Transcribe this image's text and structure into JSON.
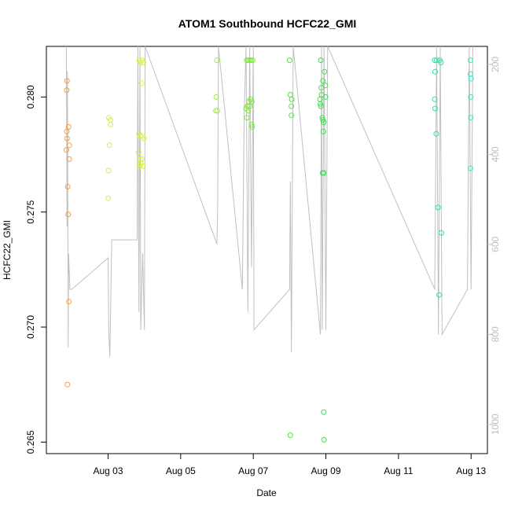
{
  "chart_data": {
    "type": "scatter",
    "title": "ATOM1 Southbound HCFC22_GMI",
    "xlabel": "Date",
    "ylabel": "HCFC22_GMI",
    "x_unit": "days of August (day-of-month, fractional)",
    "xlim": [
      1.3,
      13.45
    ],
    "ylim": [
      0.2645,
      0.2822
    ],
    "y2lim": [
      1065,
      160
    ],
    "x_ticks": [
      {
        "value": 3,
        "label": "Aug 03"
      },
      {
        "value": 5,
        "label": "Aug 05"
      },
      {
        "value": 7,
        "label": "Aug 07"
      },
      {
        "value": 9,
        "label": "Aug 09"
      },
      {
        "value": 11,
        "label": "Aug 11"
      },
      {
        "value": 13,
        "label": "Aug 13"
      }
    ],
    "y_ticks": [
      0.265,
      0.27,
      0.275,
      0.28
    ],
    "y2_ticks": [
      200,
      400,
      600,
      800,
      1000
    ],
    "grid": false,
    "series": [
      {
        "color": "#f4a040",
        "points": [
          [
            1.87,
            0.2807
          ],
          [
            1.86,
            0.2803
          ],
          [
            1.86,
            0.2785
          ],
          [
            1.87,
            0.2782
          ],
          [
            1.91,
            0.2787
          ],
          [
            1.85,
            0.2777
          ],
          [
            1.93,
            0.2779
          ],
          [
            1.93,
            0.2773
          ],
          [
            1.89,
            0.2761
          ],
          [
            1.9,
            0.2749
          ],
          [
            1.92,
            0.2711
          ],
          [
            1.88,
            0.2675
          ]
        ]
      },
      {
        "color": "#d8ea5a",
        "points": [
          [
            3.02,
            0.2791
          ],
          [
            3.06,
            0.279
          ],
          [
            3.07,
            0.2788
          ],
          [
            3.04,
            0.2779
          ],
          [
            3.01,
            0.2768
          ],
          [
            3.0,
            0.2756
          ]
        ]
      },
      {
        "color": "#e0f040",
        "points": [
          [
            3.86,
            0.2816
          ],
          [
            3.9,
            0.2815
          ],
          [
            3.94,
            0.2816
          ],
          [
            3.97,
            0.2815
          ],
          [
            3.92,
            0.2806
          ],
          [
            3.85,
            0.2784
          ],
          [
            3.89,
            0.2783
          ],
          [
            3.95,
            0.2783
          ],
          [
            3.99,
            0.2782
          ],
          [
            3.84,
            0.2776
          ],
          [
            3.88,
            0.2773
          ],
          [
            3.93,
            0.2773
          ],
          [
            3.9,
            0.2771
          ],
          [
            3.96,
            0.277
          ],
          [
            3.87,
            0.277
          ]
        ]
      },
      {
        "color": "#a8e84a",
        "points": [
          [
            6.0,
            0.2816
          ],
          [
            5.98,
            0.28
          ],
          [
            5.97,
            0.2794
          ],
          [
            6.01,
            0.2794
          ]
        ]
      },
      {
        "color": "#80e640",
        "points": [
          [
            6.82,
            0.2816
          ],
          [
            6.86,
            0.2816
          ],
          [
            6.9,
            0.2816
          ],
          [
            6.94,
            0.2816
          ],
          [
            6.98,
            0.2816
          ],
          [
            6.92,
            0.2799
          ],
          [
            6.96,
            0.2798
          ],
          [
            6.88,
            0.2798
          ],
          [
            6.84,
            0.2796
          ],
          [
            6.8,
            0.2795
          ],
          [
            6.86,
            0.2794
          ],
          [
            6.9,
            0.2796
          ],
          [
            6.82,
            0.2791
          ],
          [
            6.95,
            0.2788
          ],
          [
            6.97,
            0.2787
          ]
        ]
      },
      {
        "color": "#58e048",
        "points": [
          [
            8.0,
            0.2816
          ],
          [
            8.02,
            0.2801
          ],
          [
            8.06,
            0.2799
          ],
          [
            8.05,
            0.2796
          ],
          [
            8.05,
            0.2792
          ],
          [
            8.02,
            0.2653
          ]
        ]
      },
      {
        "color": "#40e050",
        "points": [
          [
            8.86,
            0.2816
          ],
          [
            8.96,
            0.2811
          ],
          [
            8.92,
            0.2807
          ],
          [
            8.98,
            0.2805
          ],
          [
            8.87,
            0.2804
          ],
          [
            8.88,
            0.2801
          ],
          [
            8.99,
            0.28
          ],
          [
            8.84,
            0.2799
          ],
          [
            8.85,
            0.2797
          ],
          [
            8.86,
            0.2796
          ],
          [
            8.9,
            0.2791
          ],
          [
            8.92,
            0.279
          ],
          [
            8.94,
            0.2789
          ],
          [
            8.93,
            0.2785
          ],
          [
            8.91,
            0.2767
          ],
          [
            8.94,
            0.2767
          ],
          [
            8.94,
            0.2663
          ],
          [
            8.95,
            0.2651
          ]
        ]
      },
      {
        "color": "#30e0a8",
        "points": [
          [
            12.0,
            0.2816
          ],
          [
            12.05,
            0.2816
          ],
          [
            12.14,
            0.2816
          ],
          [
            12.17,
            0.2815
          ],
          [
            12.01,
            0.2811
          ],
          [
            12.0,
            0.2799
          ],
          [
            12.01,
            0.2795
          ],
          [
            12.04,
            0.2784
          ],
          [
            12.09,
            0.2752
          ],
          [
            12.18,
            0.2741
          ],
          [
            12.12,
            0.2714
          ]
        ]
      },
      {
        "color": "#30e8c8",
        "points": [
          [
            12.98,
            0.2816
          ],
          [
            12.98,
            0.281
          ],
          [
            13.0,
            0.2808
          ],
          [
            12.99,
            0.28
          ],
          [
            12.99,
            0.2791
          ],
          [
            12.98,
            0.2769
          ]
        ]
      }
    ],
    "altitude_trace": {
      "color": "#c0c0c0",
      "axis": "right",
      "points": [
        [
          1.85,
          160
        ],
        [
          1.87,
          560
        ],
        [
          1.88,
          215
        ],
        [
          1.9,
          830
        ],
        [
          1.91,
          620
        ],
        [
          1.95,
          700
        ],
        [
          2.0,
          700
        ],
        [
          3.0,
          630
        ],
        [
          3.02,
          800
        ],
        [
          3.05,
          850
        ],
        [
          3.1,
          590
        ],
        [
          3.8,
          590
        ],
        [
          3.82,
          160
        ],
        [
          3.85,
          750
        ],
        [
          3.88,
          160
        ],
        [
          3.9,
          790
        ],
        [
          3.95,
          620
        ],
        [
          4.0,
          790
        ],
        [
          4.02,
          160
        ],
        [
          6.0,
          600
        ],
        [
          6.02,
          510
        ],
        [
          6.04,
          160
        ],
        [
          6.7,
          700
        ],
        [
          6.75,
          310
        ],
        [
          6.8,
          160
        ],
        [
          6.85,
          750
        ],
        [
          6.9,
          160
        ],
        [
          6.95,
          650
        ],
        [
          7.0,
          160
        ],
        [
          7.02,
          790
        ],
        [
          8.0,
          700
        ],
        [
          8.02,
          460
        ],
        [
          8.05,
          840
        ],
        [
          8.08,
          400
        ],
        [
          8.1,
          160
        ],
        [
          8.85,
          800
        ],
        [
          8.88,
          160
        ],
        [
          8.9,
          790
        ],
        [
          8.95,
          160
        ],
        [
          9.0,
          790
        ],
        [
          9.05,
          160
        ],
        [
          12.0,
          700
        ],
        [
          12.05,
          160
        ],
        [
          12.1,
          800
        ],
        [
          12.15,
          160
        ],
        [
          12.2,
          800
        ],
        [
          12.9,
          700
        ],
        [
          12.95,
          160
        ],
        [
          13.0,
          700
        ],
        [
          13.05,
          160
        ]
      ]
    }
  }
}
